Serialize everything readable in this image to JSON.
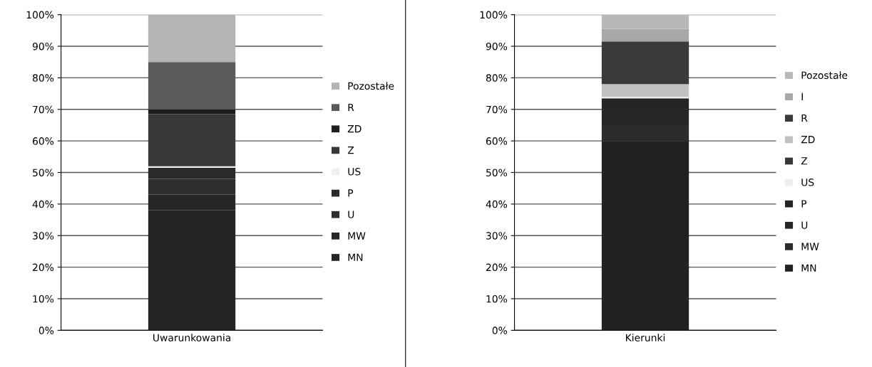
{
  "chart_data": [
    {
      "type": "bar",
      "stacked": true,
      "categories": [
        "Uwarunkowania"
      ],
      "ylim": [
        0,
        100
      ],
      "yticks": [
        {
          "value": 0,
          "label": "0%"
        },
        {
          "value": 10,
          "label": "10%"
        },
        {
          "value": 20,
          "label": "20%"
        },
        {
          "value": 30,
          "label": "30%"
        },
        {
          "value": 40,
          "label": "40%"
        },
        {
          "value": 50,
          "label": "50%"
        },
        {
          "value": 60,
          "label": "60%"
        },
        {
          "value": 70,
          "label": "70%"
        },
        {
          "value": 80,
          "label": "80%"
        },
        {
          "value": 90,
          "label": "90%"
        },
        {
          "value": 100,
          "label": "100%"
        }
      ],
      "grid": "y",
      "legend": "right",
      "series": [
        {
          "name": "MN",
          "color": "#242424",
          "values": [
            38
          ]
        },
        {
          "name": "MW",
          "color": "#262626",
          "values": [
            5
          ]
        },
        {
          "name": "U",
          "color": "#2e2e2e",
          "values": [
            5
          ]
        },
        {
          "name": "P",
          "color": "#2a2a2a",
          "values": [
            3.5
          ]
        },
        {
          "name": "US",
          "color": "#f0f0f0",
          "values": [
            0.5
          ]
        },
        {
          "name": "Z",
          "color": "#383838",
          "values": [
            16.5
          ]
        },
        {
          "name": "ZD",
          "color": "#1e1e1e",
          "values": [
            1.5
          ]
        },
        {
          "name": "R",
          "color": "#5a5a5a",
          "values": [
            15
          ]
        },
        {
          "name": "Pozostałe",
          "color": "#b4b4b4",
          "values": [
            15
          ]
        }
      ]
    },
    {
      "type": "bar",
      "stacked": true,
      "categories": [
        "Kierunki"
      ],
      "ylim": [
        0,
        100
      ],
      "yticks": [
        {
          "value": 0,
          "label": "0%"
        },
        {
          "value": 10,
          "label": "10%"
        },
        {
          "value": 20,
          "label": "20%"
        },
        {
          "value": 30,
          "label": "30%"
        },
        {
          "value": 40,
          "label": "40%"
        },
        {
          "value": 50,
          "label": "50%"
        },
        {
          "value": 60,
          "label": "60%"
        },
        {
          "value": 70,
          "label": "70%"
        },
        {
          "value": 80,
          "label": "80%"
        },
        {
          "value": 90,
          "label": "90%"
        },
        {
          "value": 100,
          "label": "100%"
        }
      ],
      "grid": "y",
      "legend": "right",
      "series": [
        {
          "name": "MN",
          "color": "#222222",
          "values": [
            60
          ]
        },
        {
          "name": "MW",
          "color": "#2c2c2c",
          "values": [
            5
          ]
        },
        {
          "name": "U",
          "color": "#262626",
          "values": [
            5
          ]
        },
        {
          "name": "P",
          "color": "#242424",
          "values": [
            3.5
          ]
        },
        {
          "name": "US",
          "color": "#eeeeee",
          "values": [
            0.5
          ]
        },
        {
          "name": "Z",
          "color": "#383838",
          "values": [
            0
          ]
        },
        {
          "name": "ZD",
          "color": "#c0c0c0",
          "values": [
            4
          ]
        },
        {
          "name": "R",
          "color": "#3a3a3a",
          "values": [
            13.5
          ]
        },
        {
          "name": "I",
          "color": "#a8a8a8",
          "values": [
            4
          ]
        },
        {
          "name": "Pozostałe",
          "color": "#b8b8b8",
          "values": [
            4.5
          ]
        }
      ]
    }
  ]
}
